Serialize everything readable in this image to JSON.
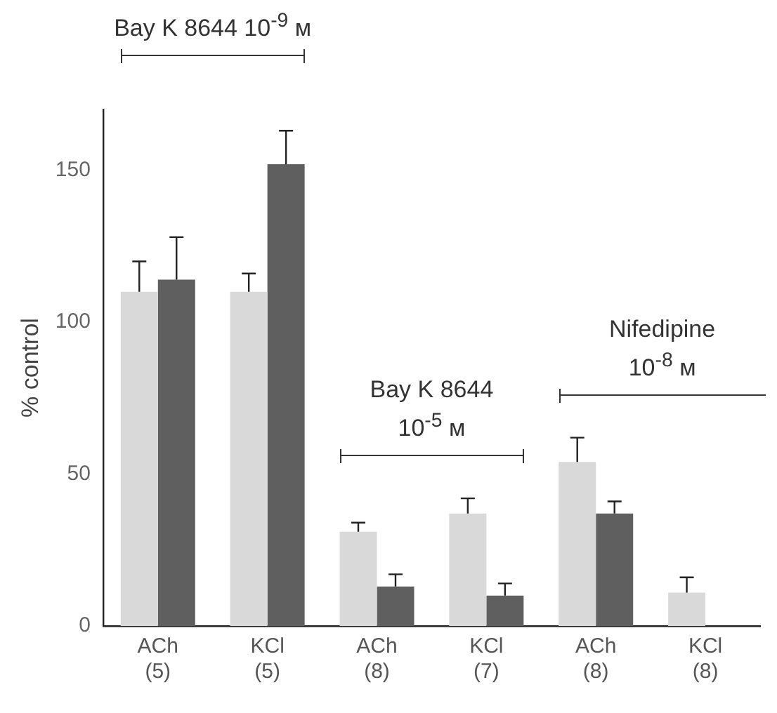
{
  "chart_data": {
    "type": "bar",
    "ylabel": "% control",
    "categories": [
      "ACh (5)",
      "KCl (5)",
      "ACh (8)",
      "KCl (7)",
      "ACh (8)",
      "KCl (8)"
    ],
    "series": [
      {
        "color": "#d9d9d9",
        "values": [
          110,
          110,
          31,
          37,
          54,
          11
        ],
        "errors": [
          10,
          6,
          3,
          5,
          8,
          5
        ]
      },
      {
        "color": "#5f5f5f",
        "values": [
          114,
          152,
          13,
          10,
          37,
          null
        ],
        "errors": [
          14,
          11,
          4,
          4,
          4,
          null
        ]
      }
    ],
    "ylim": [
      0,
      170
    ],
    "yticks": [
      0,
      50,
      100,
      150
    ],
    "grid": false,
    "legend": false,
    "annotations": [
      "Bay K 8644 10$^{-9}$ м",
      "Bay K 8644\n10$^{-5}$ м",
      "Nifedipine\n10$^{-8}$ м"
    ]
  }
}
